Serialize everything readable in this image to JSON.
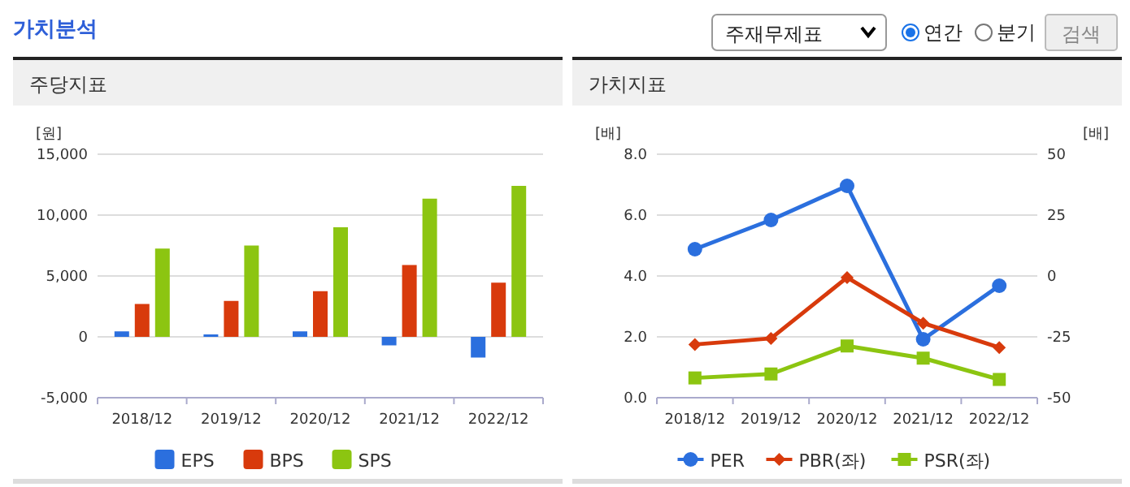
{
  "chart_data": [
    {
      "type": "other",
      "title": "가치분석",
      "annotations": [
        "주재무제표",
        "연간",
        "분기",
        "검색"
      ]
    },
    {
      "type": "bar",
      "title": "주당지표",
      "ylabel": "[원]",
      "categories": [
        "2018/12",
        "2019/12",
        "2020/12",
        "2021/12",
        "2022/12"
      ],
      "series": [
        {
          "name": "EPS",
          "color": "#2b6fde",
          "values": [
            450,
            200,
            450,
            -700,
            -1700
          ]
        },
        {
          "name": "BPS",
          "color": "#d83a0c",
          "values": [
            2700,
            2950,
            3750,
            5900,
            4450
          ]
        },
        {
          "name": "SPS",
          "color": "#8cc511",
          "values": [
            7250,
            7500,
            9000,
            11350,
            12400
          ]
        }
      ],
      "ylim": [
        -5000,
        15000
      ],
      "yticks": [
        {
          "value": -5000,
          "label": "-5,000"
        },
        0,
        {
          "value": 5000,
          "label": "5,000"
        },
        {
          "value": 10000,
          "label": "10,000"
        },
        {
          "value": 15000,
          "label": "15,000"
        }
      ],
      "grid": "y",
      "legend": "bottom"
    },
    {
      "type": "line",
      "title": "가치지표",
      "ylabel": "[배]",
      "y2label": "[배]",
      "categories": [
        "2018/12",
        "2019/12",
        "2020/12",
        "2021/12",
        "2022/12"
      ],
      "series": [
        {
          "name": "PER",
          "color": "#2b6fde",
          "axis": "y2",
          "marker": "circle",
          "values": [
            11,
            23,
            37,
            -26,
            -4
          ]
        },
        {
          "name": "PBR(좌)",
          "color": "#d83a0c",
          "marker": "diamond",
          "values": [
            1.75,
            1.95,
            3.95,
            2.45,
            1.65
          ]
        },
        {
          "name": "PSR(좌)",
          "color": "#8cc511",
          "marker": "square",
          "values": [
            0.65,
            0.78,
            1.7,
            1.3,
            0.6
          ]
        }
      ],
      "ylim": [
        0,
        8
      ],
      "yticks": [
        {
          "value": 0,
          "label": "0.0"
        },
        {
          "value": 2,
          "label": "2.0"
        },
        {
          "value": 4,
          "label": "4.0"
        },
        {
          "value": 6,
          "label": "6.0"
        },
        {
          "value": 8,
          "label": "8.0"
        }
      ],
      "y2lim": [
        -50,
        50
      ],
      "y2ticks": [
        -50,
        -25,
        0,
        25,
        50
      ],
      "grid": "y",
      "legend": "bottom"
    }
  ]
}
